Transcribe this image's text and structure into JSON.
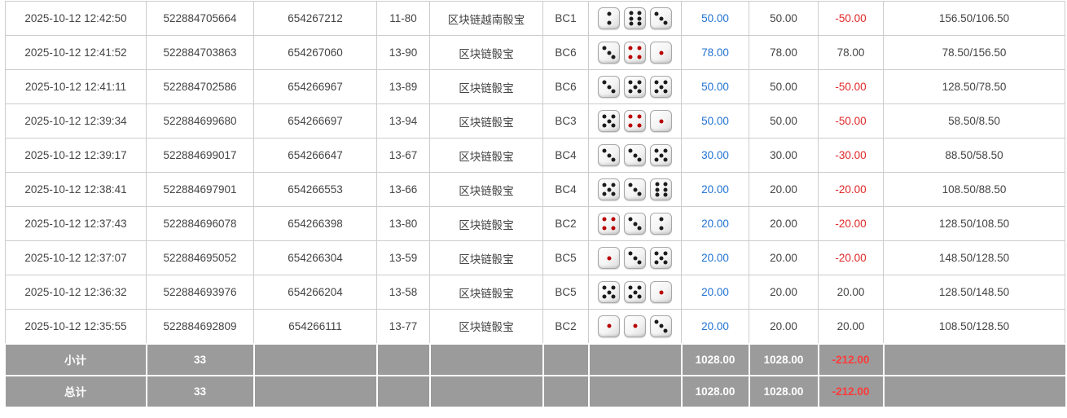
{
  "colors": {
    "link_blue": "#2273d2",
    "negative_red": "#e02727",
    "footer_bg": "#9b9b9b",
    "footer_negative_red": "#ff3a3a",
    "border_gray": "#cccccc",
    "dice_pip_black": "#1c1c1c",
    "dice_pip_red": "#b80000"
  },
  "table": {
    "rows": [
      {
        "time": "2025-10-12 12:42:50",
        "bet_id": "522884705664",
        "round_id": "654267212",
        "period": "11-80",
        "game": "区块链越南骰宝",
        "table_code": "BC1",
        "dice": [
          2,
          6,
          3
        ],
        "bet": "50.00",
        "valid": "50.00",
        "win_loss": "-50.00",
        "balance": "156.50/106.50"
      },
      {
        "time": "2025-10-12 12:41:52",
        "bet_id": "522884703863",
        "round_id": "654267060",
        "period": "13-90",
        "game": "区块链骰宝",
        "table_code": "BC6",
        "dice": [
          3,
          4,
          1
        ],
        "bet": "78.00",
        "valid": "78.00",
        "win_loss": "78.00",
        "balance": "78.50/156.50"
      },
      {
        "time": "2025-10-12 12:41:11",
        "bet_id": "522884702586",
        "round_id": "654266967",
        "period": "13-89",
        "game": "区块链骰宝",
        "table_code": "BC6",
        "dice": [
          3,
          5,
          5
        ],
        "bet": "50.00",
        "valid": "50.00",
        "win_loss": "-50.00",
        "balance": "128.50/78.50"
      },
      {
        "time": "2025-10-12 12:39:34",
        "bet_id": "522884699680",
        "round_id": "654266697",
        "period": "13-94",
        "game": "区块链骰宝",
        "table_code": "BC3",
        "dice": [
          5,
          4,
          1
        ],
        "bet": "50.00",
        "valid": "50.00",
        "win_loss": "-50.00",
        "balance": "58.50/8.50"
      },
      {
        "time": "2025-10-12 12:39:17",
        "bet_id": "522884699017",
        "round_id": "654266647",
        "period": "13-67",
        "game": "区块链骰宝",
        "table_code": "BC4",
        "dice": [
          3,
          3,
          5
        ],
        "bet": "30.00",
        "valid": "30.00",
        "win_loss": "-30.00",
        "balance": "88.50/58.50"
      },
      {
        "time": "2025-10-12 12:38:41",
        "bet_id": "522884697901",
        "round_id": "654266553",
        "period": "13-66",
        "game": "区块链骰宝",
        "table_code": "BC4",
        "dice": [
          5,
          3,
          6
        ],
        "bet": "20.00",
        "valid": "20.00",
        "win_loss": "-20.00",
        "balance": "108.50/88.50"
      },
      {
        "time": "2025-10-12 12:37:43",
        "bet_id": "522884696078",
        "round_id": "654266398",
        "period": "13-80",
        "game": "区块链骰宝",
        "table_code": "BC2",
        "dice": [
          4,
          3,
          2
        ],
        "bet": "20.00",
        "valid": "20.00",
        "win_loss": "-20.00",
        "balance": "128.50/108.50"
      },
      {
        "time": "2025-10-12 12:37:07",
        "bet_id": "522884695052",
        "round_id": "654266304",
        "period": "13-59",
        "game": "区块链骰宝",
        "table_code": "BC5",
        "dice": [
          1,
          3,
          5
        ],
        "bet": "20.00",
        "valid": "20.00",
        "win_loss": "-20.00",
        "balance": "148.50/128.50"
      },
      {
        "time": "2025-10-12 12:36:32",
        "bet_id": "522884693976",
        "round_id": "654266204",
        "period": "13-58",
        "game": "区块链骰宝",
        "table_code": "BC5",
        "dice": [
          5,
          5,
          1
        ],
        "bet": "20.00",
        "valid": "20.00",
        "win_loss": "20.00",
        "balance": "128.50/148.50"
      },
      {
        "time": "2025-10-12 12:35:55",
        "bet_id": "522884692809",
        "round_id": "654266111",
        "period": "13-77",
        "game": "区块链骰宝",
        "table_code": "BC2",
        "dice": [
          1,
          1,
          3
        ],
        "bet": "20.00",
        "valid": "20.00",
        "win_loss": "20.00",
        "balance": "108.50/128.50"
      }
    ],
    "footer": [
      {
        "label": "小计",
        "count": "33",
        "bet_total": "1028.00",
        "valid_total": "1028.00",
        "win_loss_total": "-212.00"
      },
      {
        "label": "总计",
        "count": "33",
        "bet_total": "1028.00",
        "valid_total": "1028.00",
        "win_loss_total": "-212.00"
      }
    ]
  }
}
